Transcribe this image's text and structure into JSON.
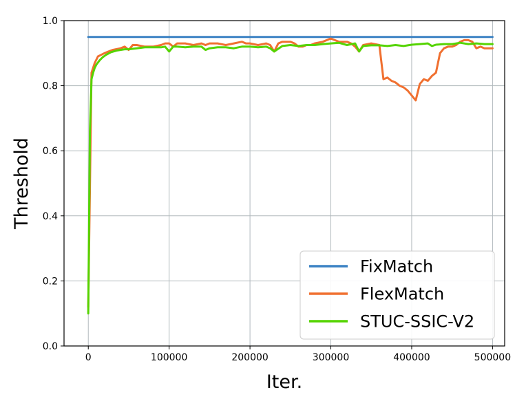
{
  "chart_data": {
    "type": "line",
    "title": "",
    "xlabel": "Iter.",
    "ylabel": "Threshold",
    "xlim": [
      -30000,
      515000
    ],
    "ylim": [
      0.0,
      1.0
    ],
    "xticks": [
      0,
      100000,
      200000,
      300000,
      400000,
      500000
    ],
    "yticks": [
      0.0,
      0.2,
      0.4,
      0.6,
      0.8,
      1.0
    ],
    "xtick_labels": [
      "0",
      "100000",
      "200000",
      "300000",
      "400000",
      "500000"
    ],
    "ytick_labels": [
      "0.0",
      "0.2",
      "0.4",
      "0.6",
      "0.8",
      "1.0"
    ],
    "grid": true,
    "legend_position": "bottom-right",
    "series": [
      {
        "name": "FixMatch",
        "color": "#3b82c4",
        "x": [
          0,
          500000
        ],
        "y": [
          0.95,
          0.95
        ]
      },
      {
        "name": "FlexMatch",
        "color": "#f07030",
        "x": [
          0,
          4000,
          8000,
          12000,
          16000,
          20000,
          25000,
          30000,
          40000,
          45000,
          50000,
          55000,
          60000,
          70000,
          80000,
          90000,
          95000,
          100000,
          105000,
          110000,
          120000,
          130000,
          140000,
          145000,
          150000,
          160000,
          170000,
          180000,
          190000,
          195000,
          200000,
          210000,
          220000,
          225000,
          230000,
          235000,
          240000,
          250000,
          255000,
          260000,
          265000,
          270000,
          275000,
          280000,
          290000,
          300000,
          305000,
          310000,
          320000,
          325000,
          330000,
          335000,
          340000,
          350000,
          360000,
          365000,
          370000,
          375000,
          380000,
          385000,
          390000,
          395000,
          400000,
          405000,
          410000,
          415000,
          420000,
          425000,
          430000,
          435000,
          440000,
          445000,
          450000,
          455000,
          460000,
          465000,
          470000,
          475000,
          480000,
          485000,
          490000,
          500000
        ],
        "y": [
          0.12,
          0.84,
          0.87,
          0.89,
          0.895,
          0.9,
          0.905,
          0.91,
          0.915,
          0.92,
          0.91,
          0.925,
          0.925,
          0.92,
          0.92,
          0.925,
          0.93,
          0.93,
          0.92,
          0.93,
          0.93,
          0.925,
          0.93,
          0.925,
          0.93,
          0.93,
          0.925,
          0.93,
          0.935,
          0.93,
          0.93,
          0.925,
          0.93,
          0.925,
          0.905,
          0.93,
          0.935,
          0.935,
          0.93,
          0.92,
          0.92,
          0.925,
          0.925,
          0.93,
          0.935,
          0.945,
          0.94,
          0.935,
          0.935,
          0.93,
          0.92,
          0.905,
          0.925,
          0.93,
          0.925,
          0.82,
          0.825,
          0.815,
          0.81,
          0.8,
          0.795,
          0.785,
          0.77,
          0.755,
          0.805,
          0.82,
          0.815,
          0.83,
          0.84,
          0.9,
          0.915,
          0.92,
          0.92,
          0.925,
          0.935,
          0.94,
          0.94,
          0.935,
          0.915,
          0.92,
          0.915,
          0.915
        ]
      },
      {
        "name": "STUC-SSIC-V2",
        "color": "#55d400",
        "x": [
          0,
          2000,
          4000,
          6000,
          8000,
          10000,
          14000,
          18000,
          22000,
          28000,
          35000,
          45000,
          50000,
          60000,
          70000,
          80000,
          90000,
          95000,
          100000,
          105000,
          110000,
          120000,
          130000,
          140000,
          145000,
          150000,
          160000,
          170000,
          180000,
          190000,
          200000,
          210000,
          220000,
          225000,
          230000,
          240000,
          250000,
          260000,
          270000,
          280000,
          290000,
          300000,
          310000,
          320000,
          330000,
          335000,
          340000,
          350000,
          360000,
          370000,
          380000,
          390000,
          400000,
          410000,
          420000,
          425000,
          430000,
          440000,
          450000,
          460000,
          470000,
          480000,
          490000,
          500000
        ],
        "y": [
          0.1,
          0.66,
          0.82,
          0.84,
          0.855,
          0.865,
          0.878,
          0.888,
          0.895,
          0.903,
          0.908,
          0.912,
          0.912,
          0.915,
          0.918,
          0.918,
          0.918,
          0.92,
          0.905,
          0.92,
          0.92,
          0.918,
          0.92,
          0.92,
          0.91,
          0.915,
          0.918,
          0.918,
          0.915,
          0.92,
          0.92,
          0.918,
          0.92,
          0.915,
          0.905,
          0.922,
          0.925,
          0.922,
          0.925,
          0.925,
          0.928,
          0.93,
          0.932,
          0.925,
          0.93,
          0.905,
          0.922,
          0.924,
          0.924,
          0.922,
          0.925,
          0.922,
          0.926,
          0.928,
          0.93,
          0.922,
          0.926,
          0.928,
          0.928,
          0.932,
          0.928,
          0.93,
          0.928,
          0.928
        ]
      }
    ]
  }
}
